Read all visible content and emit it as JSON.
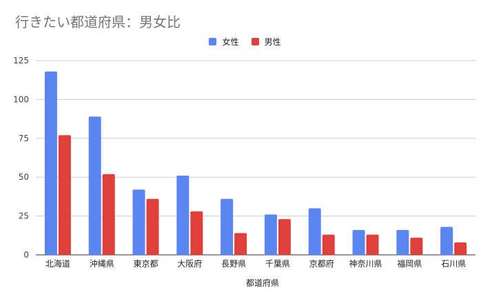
{
  "chart_data": {
    "type": "bar",
    "title": "行きたい都道府県：男女比",
    "xlabel": "都道府県",
    "ylabel": "",
    "ylim": [
      0,
      125
    ],
    "yticks": [
      0,
      25,
      50,
      75,
      100,
      125
    ],
    "grid": true,
    "legend_position": "top",
    "categories": [
      "北海道",
      "沖縄県",
      "東京都",
      "大阪府",
      "長野県",
      "千葉県",
      "京都府",
      "神奈川県",
      "福岡県",
      "石川県"
    ],
    "series": [
      {
        "name": "女性",
        "color": "#5b86f2",
        "values": [
          118,
          89,
          42,
          51,
          36,
          26,
          30,
          16,
          16,
          18
        ]
      },
      {
        "name": "男性",
        "color": "#e0403c",
        "values": [
          77,
          52,
          36,
          28,
          14,
          23,
          13,
          13,
          11,
          8
        ]
      }
    ]
  }
}
